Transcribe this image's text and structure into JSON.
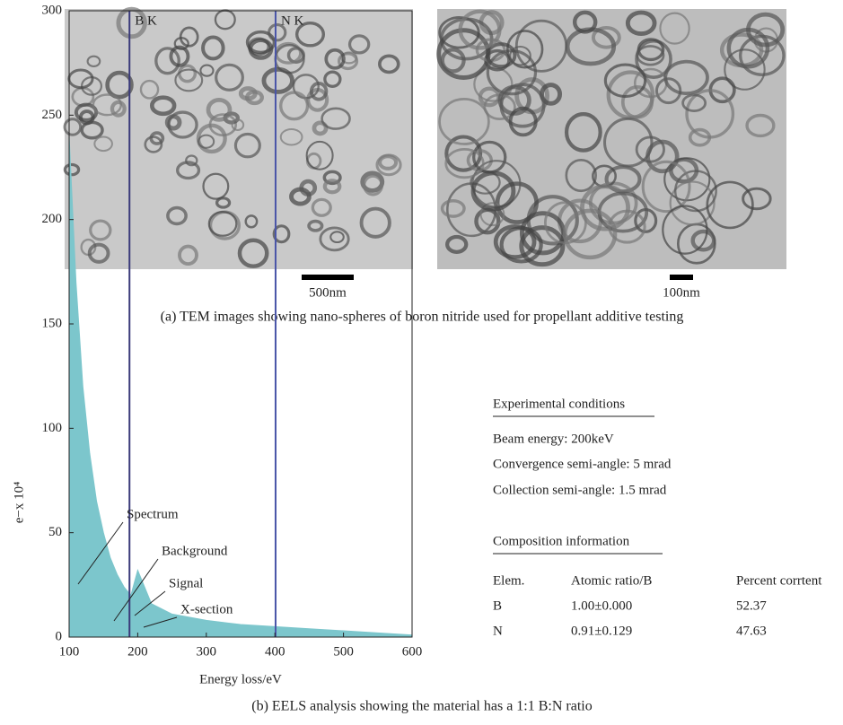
{
  "figure_a": {
    "scale_bars": [
      "500nm",
      "100nm"
    ],
    "caption": "(a) TEM images showing nano-spheres of boron nitride used for propellant additive testing"
  },
  "chart_data": {
    "type": "area",
    "x_label": "Energy loss/eV",
    "y_label": "e−x 10⁴",
    "x": [
      100,
      110,
      120,
      130,
      140,
      150,
      160,
      170,
      180,
      190,
      200,
      220,
      250,
      300,
      350,
      400,
      450,
      500,
      550,
      600
    ],
    "series": [
      {
        "name": "Spectrum",
        "color": "#7cc6cc",
        "values": [
          240,
          170,
          120,
          88,
          65,
          50,
          38,
          30,
          24,
          20,
          32,
          16,
          11,
          8,
          6,
          5,
          4,
          3,
          2,
          1
        ]
      }
    ],
    "edges": [
      {
        "label": "B K",
        "x": 188
      },
      {
        "label": "N K",
        "x": 401
      }
    ],
    "annotations": [
      "Spectrum",
      "Background",
      "Signal",
      "X-section"
    ],
    "xlim": [
      100,
      600
    ],
    "xticks": [
      100,
      200,
      300,
      400,
      500,
      600
    ],
    "ylim": [
      0,
      300
    ],
    "yticks": [
      0,
      50,
      100,
      150,
      200,
      250,
      300
    ]
  },
  "conditions": {
    "title": "Experimental conditions",
    "items": [
      "Beam energy: 200keV",
      "Convergence semi-angle: 5 mrad",
      "Collection semi-angle: 1.5 mrad"
    ]
  },
  "composition": {
    "title": "Composition information",
    "header": [
      "Elem.",
      "Atomic ratio/B",
      "Percent corrtent"
    ],
    "rows": [
      [
        "B",
        "1.00±0.000",
        "52.37"
      ],
      [
        "N",
        "0.91±0.129",
        "47.63"
      ]
    ]
  },
  "caption_b": "(b) EELS analysis showing the material has a 1:1 B:N ratio"
}
